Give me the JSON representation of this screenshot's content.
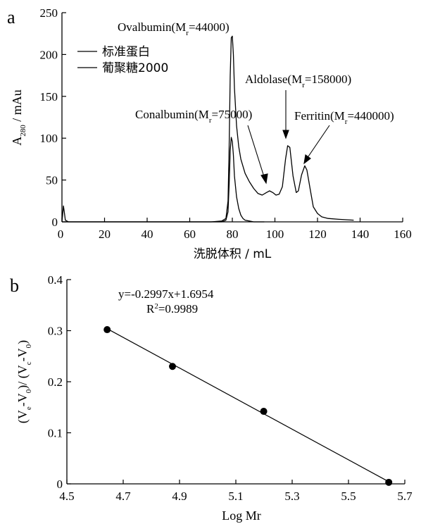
{
  "chart_data": [
    {
      "panel": "a",
      "type": "line",
      "xlabel": "洗脱体积 / mL",
      "ylabel": "A280 / mAu",
      "ylabel_main": "A",
      "ylabel_sub": "280",
      "ylabel_rest": " / mAu",
      "xlim": [
        0,
        160
      ],
      "ylim": [
        0,
        250
      ],
      "x_ticks": [
        0,
        20,
        40,
        60,
        80,
        100,
        120,
        140,
        160
      ],
      "y_ticks": [
        0,
        50,
        100,
        150,
        200,
        250
      ],
      "legend": {
        "placement": "upper-left"
      },
      "series": [
        {
          "name": "标准蛋白",
          "x": [
            0,
            70,
            75,
            77,
            78,
            78.5,
            79,
            79.5,
            80,
            80.5,
            81,
            82,
            83,
            84,
            86,
            88,
            90,
            92,
            94,
            96,
            97.5,
            99,
            100.5,
            102,
            103.5,
            105,
            106,
            107,
            108.5,
            110,
            111,
            112.5,
            114,
            115,
            116.5,
            118,
            120,
            122,
            125,
            130,
            137
          ],
          "y": [
            0,
            0,
            1,
            4,
            25,
            90,
            175,
            220,
            222,
            200,
            160,
            115,
            90,
            75,
            58,
            48,
            40,
            34,
            32,
            35,
            37,
            35,
            32,
            33,
            42,
            75,
            91,
            89,
            55,
            35,
            37,
            56,
            67,
            62,
            40,
            18,
            10,
            6,
            4,
            3,
            2
          ]
        },
        {
          "name": "葡聚糖2000",
          "x": [
            0,
            0.3,
            0.7,
            1.1,
            1.6,
            3,
            60,
            75,
            77,
            78,
            78.5,
            79,
            79.5,
            80,
            80.5,
            81,
            82,
            83,
            84,
            85,
            86,
            88,
            90,
            95
          ],
          "y": [
            0,
            8,
            19,
            12,
            2,
            0,
            0,
            0,
            2,
            12,
            45,
            85,
            101,
            96,
            80,
            55,
            30,
            16,
            8,
            4,
            2,
            1,
            0,
            0
          ]
        }
      ],
      "annotations": [
        {
          "base": "Ovalbumin(M",
          "sub": "r",
          "rest": "=44000)"
        },
        {
          "base": "Conalbumin(M",
          "sub": "r",
          "rest": "=75000)"
        },
        {
          "base": "Aldolase(M",
          "sub": "r",
          "rest": "=158000)"
        },
        {
          "base": "Ferritin(M",
          "sub": "r",
          "rest": "=440000)"
        }
      ]
    },
    {
      "panel": "b",
      "type": "scatter",
      "xlabel": "Log Mr",
      "ylabel": "(Ve-V0)/(Vc-V0)",
      "xlim": [
        4.5,
        5.7
      ],
      "ylim": [
        0,
        0.4
      ],
      "x_ticks": [
        "4.5",
        "4.7",
        "4.9",
        "5.1",
        "5.3",
        "5.5",
        "5.7"
      ],
      "y_ticks": [
        "0",
        "0.1",
        "0.2",
        "0.3",
        "0.4"
      ],
      "points": {
        "x": [
          4.643,
          4.875,
          5.199,
          5.643
        ],
        "y": [
          0.302,
          0.23,
          0.142,
          0.003
        ]
      },
      "fit": {
        "slope": -0.2997,
        "intercept": 1.6954
      },
      "equation": "y=-0.2997x+1.6954",
      "r2_base": "R",
      "r2_sup": "2",
      "r2_rest": "=0.9989"
    }
  ]
}
